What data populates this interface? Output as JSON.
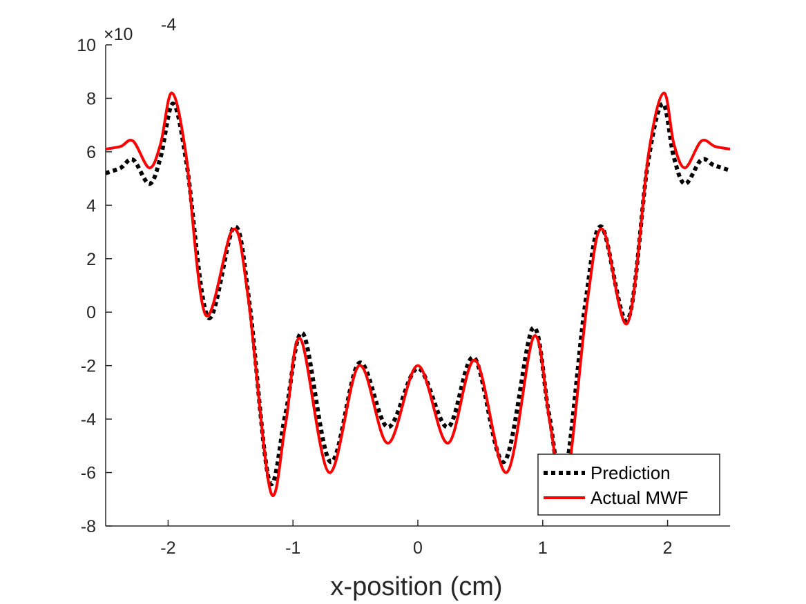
{
  "chart_data": {
    "type": "line",
    "title": "",
    "xlabel": "x-position (cm)",
    "ylabel": "",
    "xlim": [
      -2.5,
      2.5
    ],
    "ylim": [
      -8,
      10
    ],
    "y_exponent_label": "×10",
    "y_exponent_power": "-4",
    "x_ticks": [
      -2,
      -1,
      0,
      1,
      2
    ],
    "x_tick_labels": [
      "-2",
      "-1",
      "0",
      "1",
      "2"
    ],
    "y_ticks": [
      -8,
      -6,
      -4,
      -2,
      0,
      2,
      4,
      6,
      8,
      10
    ],
    "y_tick_labels": [
      "-8",
      "-6",
      "-4",
      "-2",
      "0",
      "2",
      "4",
      "6",
      "8",
      "10"
    ],
    "grid": false,
    "legend_position": "bottom-right",
    "series": [
      {
        "name": "Prediction",
        "color": "#000000",
        "style": "dotted",
        "x": [
          -2.5,
          -2.38,
          -2.28,
          -2.15,
          -2.06,
          -1.96,
          -1.85,
          -1.68,
          -1.47,
          -1.35,
          -1.19,
          -1.06,
          -0.92,
          -0.7,
          -0.47,
          -0.24,
          0,
          0.24,
          0.45,
          0.69,
          0.92,
          1.05,
          1.17,
          1.34,
          1.47,
          1.68,
          1.84,
          1.96,
          2.05,
          2.14,
          2.27,
          2.37,
          2.5
        ],
        "y": [
          5.2,
          5.4,
          5.7,
          4.8,
          5.8,
          7.8,
          5.5,
          -0.2,
          3.2,
          0.4,
          -6.3,
          -3.8,
          -0.8,
          -5.6,
          -1.9,
          -4.3,
          -2.1,
          -4.3,
          -1.7,
          -5.6,
          -0.6,
          -3.8,
          -6.3,
          0.3,
          3.2,
          -0.3,
          5.5,
          7.8,
          5.8,
          4.8,
          5.7,
          5.5,
          5.3
        ]
      },
      {
        "name": "Actual MWF",
        "color": "#ff0000",
        "style": "solid",
        "x": [
          -2.5,
          -2.38,
          -2.28,
          -2.15,
          -2.06,
          -1.97,
          -1.86,
          -1.7,
          -1.48,
          -1.36,
          -1.18,
          -1.06,
          -0.94,
          -0.71,
          -0.47,
          -0.24,
          0,
          0.24,
          0.46,
          0.71,
          0.93,
          1.06,
          1.18,
          1.36,
          1.48,
          1.68,
          1.85,
          1.97,
          2.05,
          2.14,
          2.27,
          2.38,
          2.5
        ],
        "y": [
          6.1,
          6.2,
          6.4,
          5.4,
          6.3,
          8.2,
          6.0,
          -0.1,
          3.1,
          0.6,
          -6.7,
          -4.2,
          -1.0,
          -6.0,
          -2.0,
          -4.9,
          -2.0,
          -4.9,
          -1.8,
          -6.0,
          -0.9,
          -4.2,
          -6.7,
          0.5,
          3.1,
          -0.4,
          6.0,
          8.2,
          6.3,
          5.4,
          6.4,
          6.2,
          6.1
        ]
      }
    ]
  }
}
